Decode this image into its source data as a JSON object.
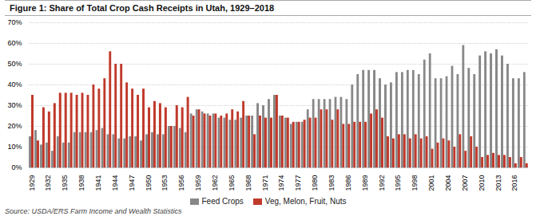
{
  "chart_data": {
    "type": "bar",
    "title": "Figure 1: Share of Total Crop Cash Receipts in Utah, 1929–2018",
    "caption": "Source: USDA/ERS Farm Income and Wealth Statistics",
    "categories": [
      "1929",
      null,
      null,
      "1932",
      null,
      null,
      "1935",
      null,
      null,
      "1938",
      null,
      null,
      "1941",
      null,
      null,
      "1944",
      null,
      null,
      "1947",
      null,
      null,
      "1950",
      null,
      null,
      "1953",
      null,
      null,
      "1956",
      null,
      null,
      "1959",
      null,
      null,
      "1962",
      null,
      null,
      "1965",
      null,
      null,
      "1968",
      null,
      null,
      "1971",
      null,
      null,
      "1974",
      null,
      null,
      "1977",
      null,
      null,
      "1980",
      null,
      null,
      "1983",
      null,
      null,
      "1986",
      null,
      null,
      "1989",
      null,
      null,
      "1992",
      null,
      null,
      "1995",
      null,
      null,
      "1998",
      null,
      null,
      "2001",
      null,
      null,
      "2004",
      null,
      null,
      "2007",
      null,
      null,
      "2010",
      null,
      null,
      "2013",
      null,
      null,
      "2016",
      null,
      null
    ],
    "series": [
      {
        "name": "Feed Crops",
        "color": "#888888",
        "values": [
          15,
          18,
          11,
          12,
          8,
          15,
          12,
          12,
          17,
          17,
          17,
          17,
          18,
          19,
          16,
          16,
          14,
          14,
          15,
          15,
          13,
          16,
          17,
          16,
          16,
          20,
          20,
          19,
          17,
          26,
          28,
          27,
          26,
          26,
          24,
          24,
          23,
          23,
          24,
          25,
          25,
          31,
          30,
          33,
          35,
          25,
          24,
          21,
          22,
          22,
          28,
          33,
          33,
          33,
          33,
          34,
          34,
          33,
          40,
          45,
          47,
          47,
          47,
          43,
          40,
          41,
          46,
          46,
          47,
          47,
          45,
          52,
          55,
          43,
          43,
          44,
          49,
          45,
          59,
          48,
          45,
          54,
          56,
          55,
          57,
          54,
          50,
          43,
          43,
          46
        ]
      },
      {
        "name": "Veg, Melon, Fruit, Nuts",
        "color": "#c0392b",
        "values": [
          35,
          13,
          29,
          27,
          31,
          36,
          36,
          36,
          35,
          36,
          35,
          40,
          38,
          43,
          56,
          50,
          50,
          41,
          38,
          35,
          38,
          29,
          32,
          31,
          29,
          20,
          30,
          29,
          34,
          25,
          28,
          26,
          25,
          26,
          25,
          26,
          28,
          27,
          32,
          25,
          16,
          25,
          24,
          24,
          35,
          25,
          24,
          22,
          22,
          23,
          24,
          24,
          28,
          28,
          23,
          28,
          21,
          21,
          22,
          22,
          22,
          26,
          28,
          24,
          15,
          14,
          16,
          16,
          14,
          16,
          14,
          15,
          9,
          12,
          14,
          13,
          10,
          16,
          8,
          15,
          10,
          5,
          6,
          7,
          6,
          6,
          5,
          2,
          5,
          2
        ]
      }
    ],
    "ylim": [
      0,
      70
    ],
    "yticks": [
      {
        "value": 0,
        "label": "0%"
      },
      {
        "value": 10,
        "label": "10%"
      },
      {
        "value": 20,
        "label": "20%"
      },
      {
        "value": 30,
        "label": "30%"
      },
      {
        "value": 40,
        "label": "40%"
      },
      {
        "value": 50,
        "label": "50%"
      },
      {
        "value": 60,
        "label": "60%"
      },
      {
        "value": 70,
        "label": "70%"
      }
    ],
    "grid": true,
    "legend": "bottom"
  }
}
